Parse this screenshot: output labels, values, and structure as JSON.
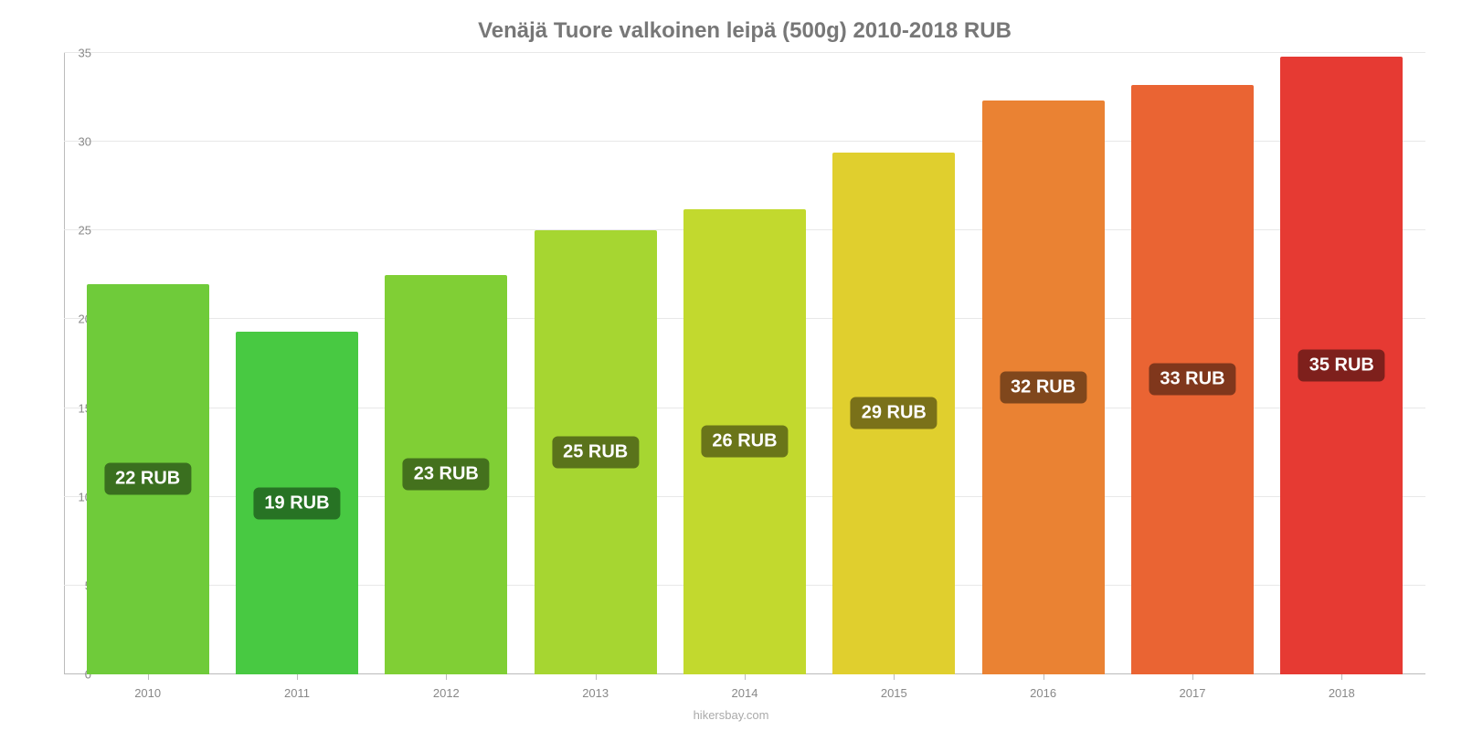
{
  "chart": {
    "type": "bar",
    "title": "Venäjä Tuore valkoinen leipä (500g) 2010-2018 RUB",
    "title_fontsize": 24,
    "title_color": "#777777",
    "background_color": "#ffffff",
    "grid_color": "#e8e8e8",
    "axis_color": "#bbbbbb",
    "tick_label_color": "#888888",
    "tick_fontsize": 13,
    "bar_label_fontsize": 20,
    "bar_label_text_color": "#ffffff",
    "bar_width_ratio": 0.82,
    "ylim": [
      0,
      35
    ],
    "ytick_step": 5,
    "yticks": [
      0,
      5,
      10,
      15,
      20,
      25,
      30,
      35
    ],
    "categories": [
      "2010",
      "2011",
      "2012",
      "2013",
      "2014",
      "2015",
      "2016",
      "2017",
      "2018"
    ],
    "values": [
      22,
      19.3,
      22.5,
      25,
      26.2,
      29.4,
      32.3,
      33.2,
      34.8
    ],
    "bar_labels": [
      "22 RUB",
      "19 RUB",
      "23 RUB",
      "25 RUB",
      "26 RUB",
      "29 RUB",
      "32 RUB",
      "33 RUB",
      "35 RUB"
    ],
    "bar_colors": [
      "#6fcb3a",
      "#48c942",
      "#80cf35",
      "#a6d631",
      "#c2d92e",
      "#e0cf2e",
      "#ea8233",
      "#ea6433",
      "#e63a33"
    ],
    "bar_label_bg_colors": [
      "#3a6f1f",
      "#277324",
      "#44711d",
      "#5a731b",
      "#6a7519",
      "#7a7119",
      "#80471c",
      "#80371c",
      "#7e201c"
    ],
    "footer": "hikersbay.com",
    "footer_color": "#aaaaaa",
    "footer_fontsize": 13
  }
}
